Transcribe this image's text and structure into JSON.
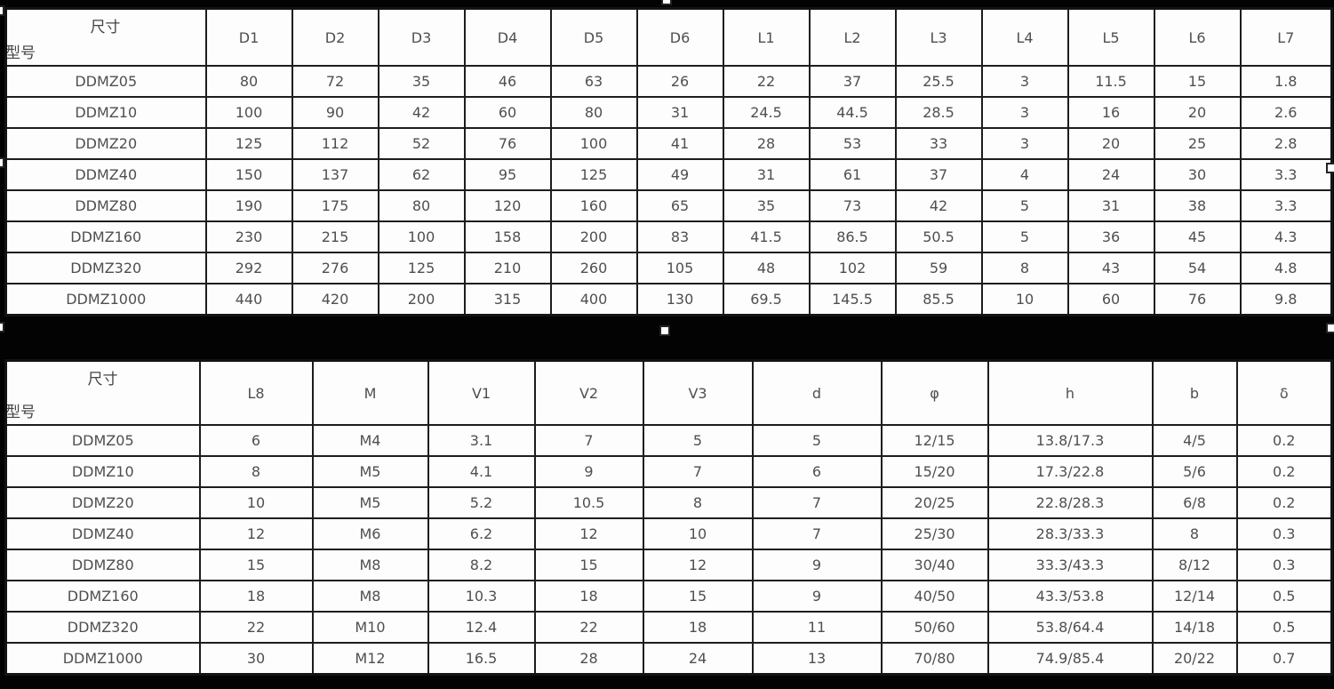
{
  "document": {
    "background": "#030303",
    "table_background": "#fdfdfd",
    "border_color": "#1d1d1d",
    "text_color": "#4f4f4f"
  },
  "table1": {
    "corner": {
      "size_label": "尺寸",
      "model_label": "型号"
    },
    "columns": [
      "D1",
      "D2",
      "D3",
      "D4",
      "D5",
      "D6",
      "L1",
      "L2",
      "L3",
      "L4",
      "L5",
      "L6",
      "L7"
    ],
    "rows": [
      {
        "model": "DDMZ05",
        "values": [
          "80",
          "72",
          "35",
          "46",
          "63",
          "26",
          "22",
          "37",
          "25.5",
          "3",
          "11.5",
          "15",
          "1.8"
        ]
      },
      {
        "model": "DDMZ10",
        "values": [
          "100",
          "90",
          "42",
          "60",
          "80",
          "31",
          "24.5",
          "44.5",
          "28.5",
          "3",
          "16",
          "20",
          "2.6"
        ]
      },
      {
        "model": "DDMZ20",
        "values": [
          "125",
          "112",
          "52",
          "76",
          "100",
          "41",
          "28",
          "53",
          "33",
          "3",
          "20",
          "25",
          "2.8"
        ]
      },
      {
        "model": "DDMZ40",
        "values": [
          "150",
          "137",
          "62",
          "95",
          "125",
          "49",
          "31",
          "61",
          "37",
          "4",
          "24",
          "30",
          "3.3"
        ]
      },
      {
        "model": "DDMZ80",
        "values": [
          "190",
          "175",
          "80",
          "120",
          "160",
          "65",
          "35",
          "73",
          "42",
          "5",
          "31",
          "38",
          "3.3"
        ]
      },
      {
        "model": "DDMZ160",
        "values": [
          "230",
          "215",
          "100",
          "158",
          "200",
          "83",
          "41.5",
          "86.5",
          "50.5",
          "5",
          "36",
          "45",
          "4.3"
        ]
      },
      {
        "model": "DDMZ320",
        "values": [
          "292",
          "276",
          "125",
          "210",
          "260",
          "105",
          "48",
          "102",
          "59",
          "8",
          "43",
          "54",
          "4.8"
        ]
      },
      {
        "model": "DDMZ1000",
        "values": [
          "440",
          "420",
          "200",
          "315",
          "400",
          "130",
          "69.5",
          "145.5",
          "85.5",
          "10",
          "60",
          "76",
          "9.8"
        ]
      }
    ]
  },
  "table2": {
    "corner": {
      "size_label": "尺寸",
      "model_label": "型号"
    },
    "columns": [
      "L8",
      "M",
      "V1",
      "V2",
      "V3",
      "d",
      "φ",
      "h",
      "b",
      "δ"
    ],
    "rows": [
      {
        "model": "DDMZ05",
        "values": [
          "6",
          "M4",
          "3.1",
          "7",
          "5",
          "5",
          "12/15",
          "13.8/17.3",
          "4/5",
          "0.2"
        ]
      },
      {
        "model": "DDMZ10",
        "values": [
          "8",
          "M5",
          "4.1",
          "9",
          "7",
          "6",
          "15/20",
          "17.3/22.8",
          "5/6",
          "0.2"
        ]
      },
      {
        "model": "DDMZ20",
        "values": [
          "10",
          "M5",
          "5.2",
          "10.5",
          "8",
          "7",
          "20/25",
          "22.8/28.3",
          "6/8",
          "0.2"
        ]
      },
      {
        "model": "DDMZ40",
        "values": [
          "12",
          "M6",
          "6.2",
          "12",
          "10",
          "7",
          "25/30",
          "28.3/33.3",
          "8",
          "0.3"
        ]
      },
      {
        "model": "DDMZ80",
        "values": [
          "15",
          "M8",
          "8.2",
          "15",
          "12",
          "9",
          "30/40",
          "33.3/43.3",
          "8/12",
          "0.3"
        ]
      },
      {
        "model": "DDMZ160",
        "values": [
          "18",
          "M8",
          "10.3",
          "18",
          "15",
          "9",
          "40/50",
          "43.3/53.8",
          "12/14",
          "0.5"
        ]
      },
      {
        "model": "DDMZ320",
        "values": [
          "22",
          "M10",
          "12.4",
          "22",
          "18",
          "11",
          "50/60",
          "53.8/64.4",
          "14/18",
          "0.5"
        ]
      },
      {
        "model": "DDMZ1000",
        "values": [
          "30",
          "M12",
          "16.5",
          "28",
          "24",
          "13",
          "70/80",
          "74.9/85.4",
          "20/22",
          "0.7"
        ]
      }
    ],
    "left_aligned_cells": [
      {
        "row": "DDMZ40",
        "column": "V1"
      }
    ]
  }
}
